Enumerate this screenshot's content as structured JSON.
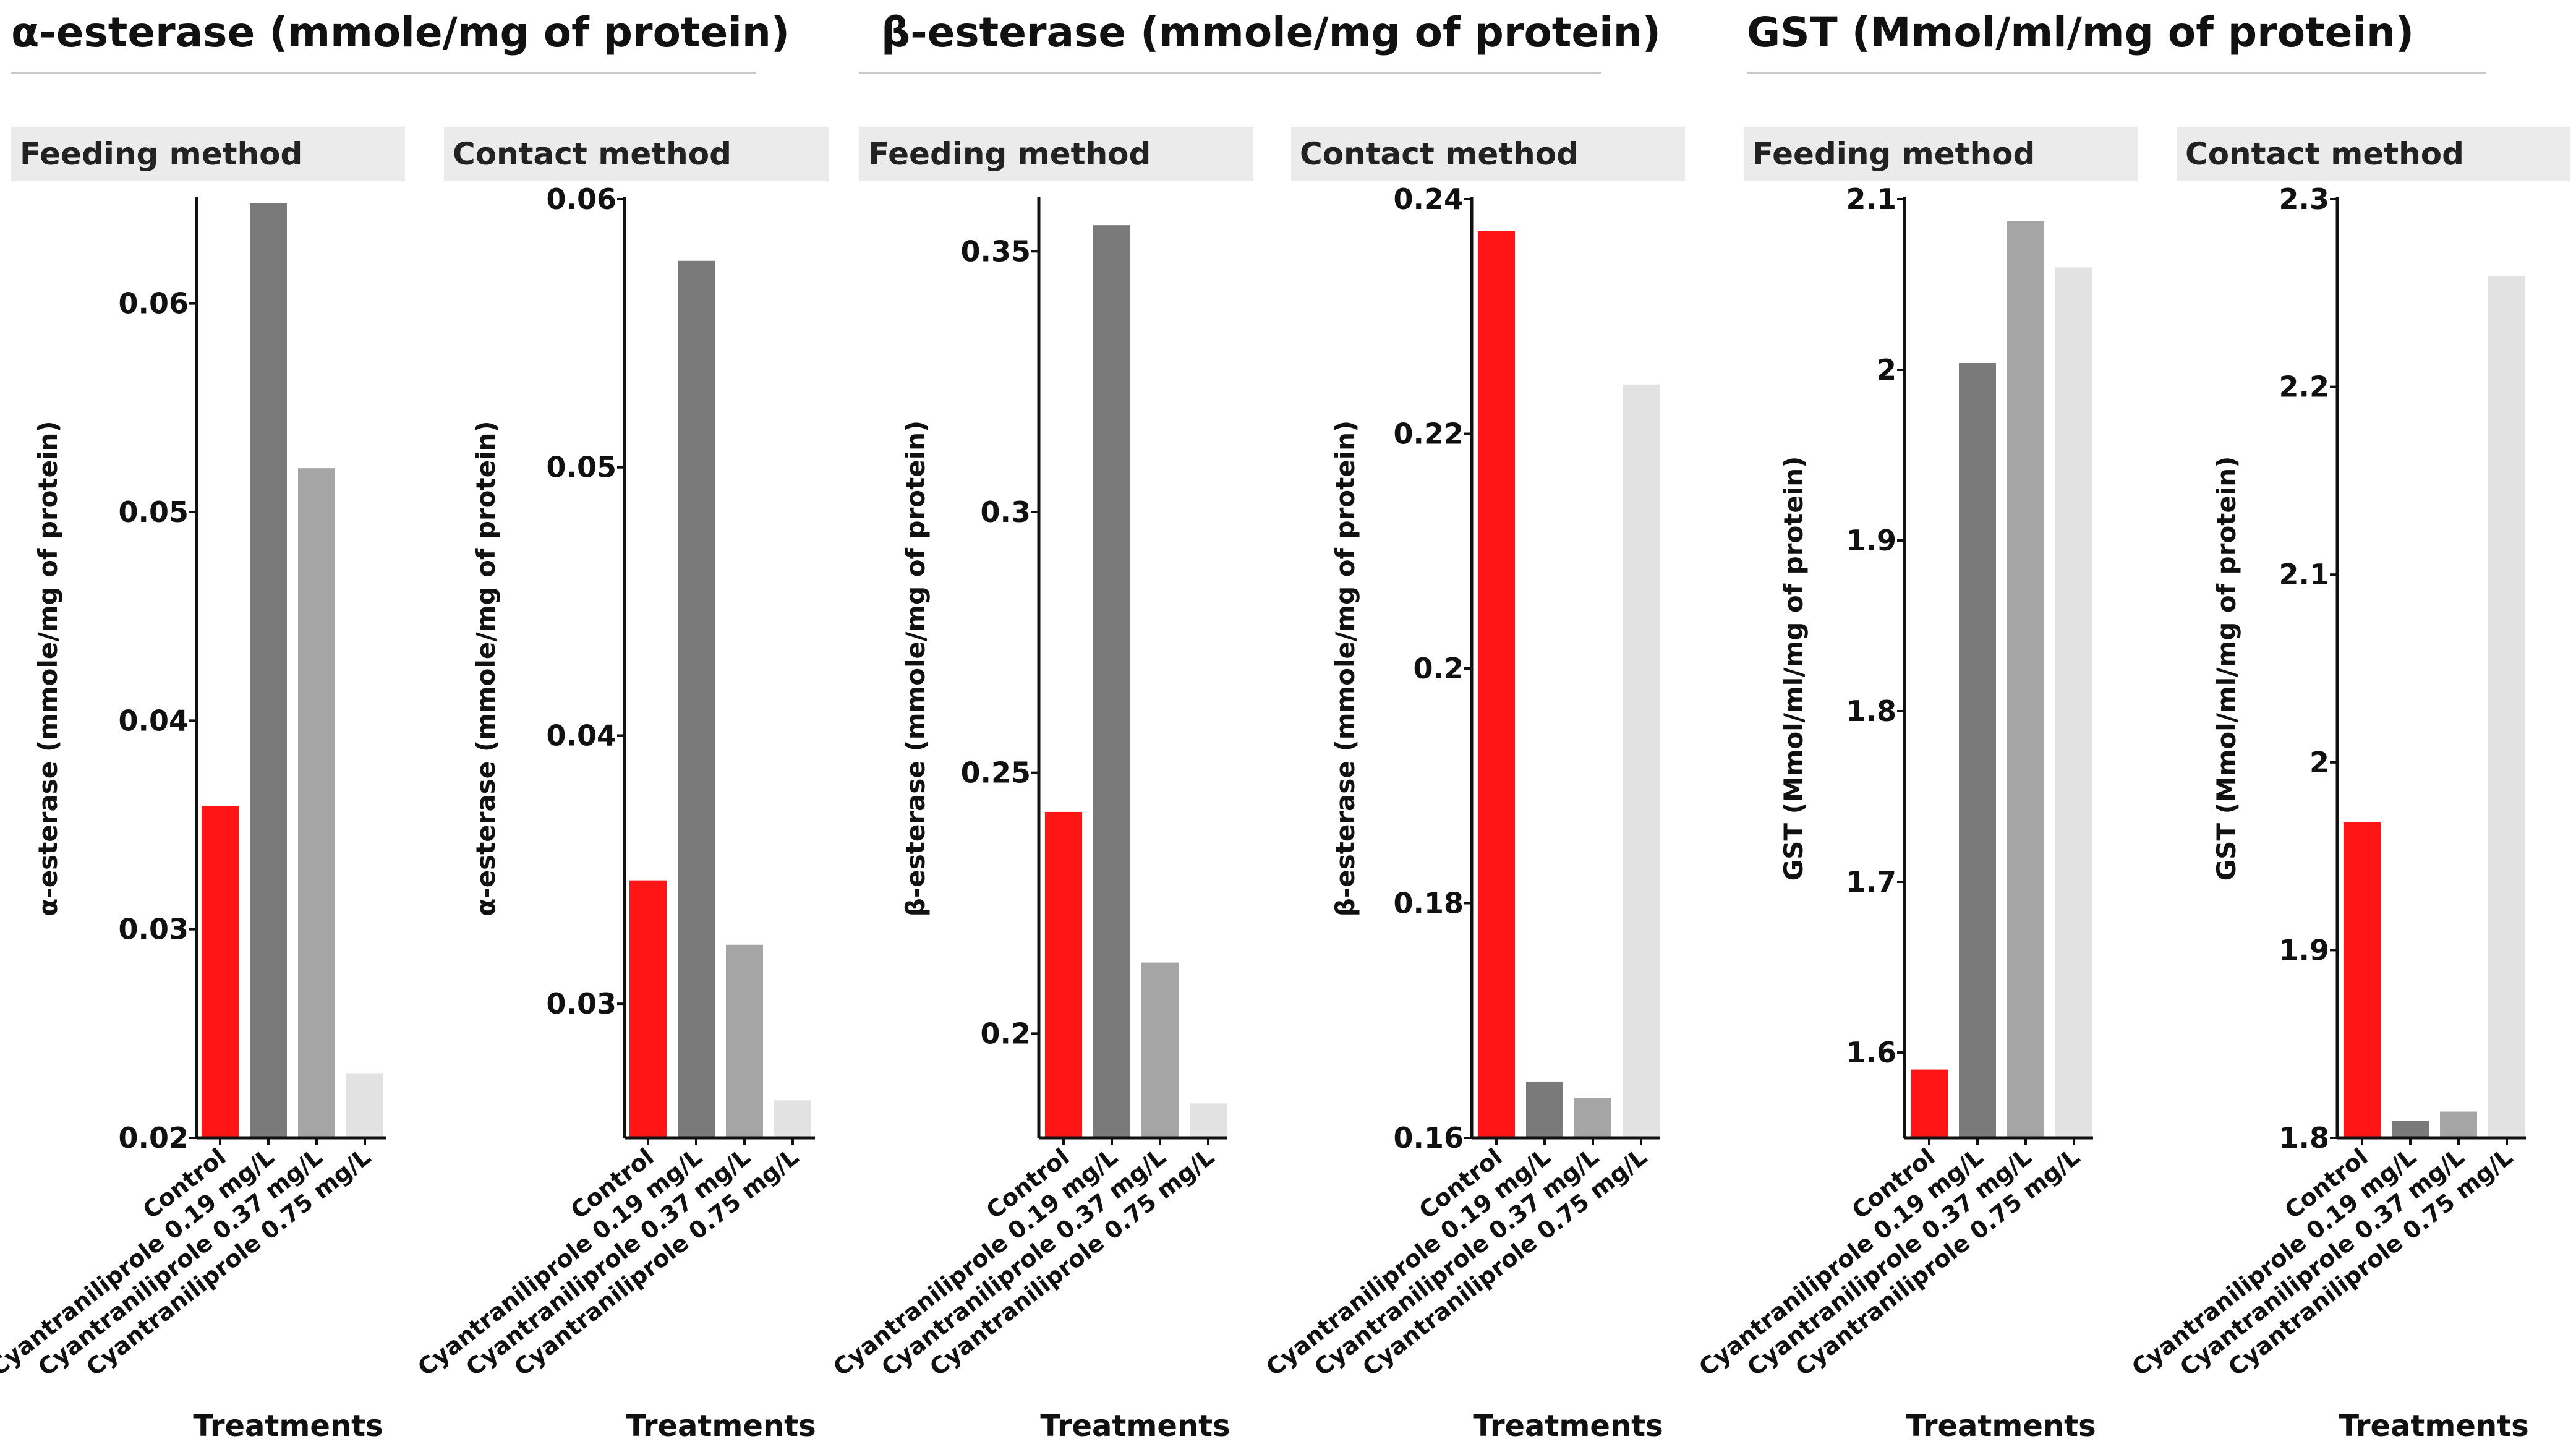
{
  "groups": [
    {
      "title": "α-esterase (mmole/mg of protein)"
    },
    {
      "title": "β-esterase (mmole/mg of protein)"
    },
    {
      "title": "GST (Mmol/ml/mg of protein)"
    }
  ],
  "colors": {
    "Control": "#ff1515",
    "C019": "#7a7a7a",
    "C037": "#a5a5a5",
    "C075": "#e2e2e2"
  },
  "chart_data": [
    {
      "type": "bar",
      "title": "Feeding method",
      "group": "α-esterase (mmole/mg of protein)",
      "categories": [
        "Control",
        "Cyantraniliprole 0.19 mg/L",
        "Cyantraniliprole 0.37 mg/L",
        "Cyantraniliprole 0.75 mg/L"
      ],
      "values": [
        0.0359,
        0.0648,
        0.0521,
        0.0231
      ],
      "xlabel": "Treatments",
      "ylabel": "α-esterase (mmole/mg of protein)",
      "ylim": [
        0.02,
        0.065
      ],
      "ticks": [
        0.02,
        0.03,
        0.04,
        0.05,
        0.06
      ],
      "tick_labels": [
        "0.02",
        "0.03",
        "0.04",
        "0.05",
        "0.06"
      ]
    },
    {
      "type": "bar",
      "title": "Contact method",
      "group": "α-esterase (mmole/mg of protein)",
      "categories": [
        "Control",
        "Cyantraniliprole 0.19 mg/L",
        "Cyantraniliprole 0.37 mg/L",
        "Cyantraniliprole 0.75 mg/L"
      ],
      "values": [
        0.0346,
        0.0577,
        0.0322,
        0.0264
      ],
      "xlabel": "Treatments",
      "ylabel": "α-esterase (mmole/mg of protein)",
      "ylim": [
        0.025,
        0.06
      ],
      "ticks": [
        0.03,
        0.04,
        0.05,
        0.06
      ],
      "tick_labels": [
        "0.03",
        "0.04",
        "0.05",
        "0.06"
      ]
    },
    {
      "type": "bar",
      "title": "Feeding method",
      "group": "β-esterase (mmole/mg of protein)",
      "categories": [
        "Control",
        "Cyantraniliprole 0.19 mg/L",
        "Cyantraniliprole 0.37 mg/L",
        "Cyantraniliprole 0.75 mg/L"
      ],
      "values": [
        0.2425,
        0.355,
        0.2136,
        0.1866
      ],
      "xlabel": "Treatments",
      "ylabel": "β-esterase  (mmole/mg of protein)",
      "ylim": [
        0.18,
        0.36
      ],
      "ticks": [
        0.2,
        0.25,
        0.3,
        0.35
      ],
      "tick_labels": [
        "0.2",
        "0.25",
        "0.3",
        "0.35"
      ]
    },
    {
      "type": "bar",
      "title": "Contact method",
      "group": "β-esterase (mmole/mg of protein)",
      "categories": [
        "Control",
        "Cyantraniliprole 0.19 mg/L",
        "Cyantraniliprole 0.37 mg/L",
        "Cyantraniliprole 0.75 mg/L"
      ],
      "values": [
        0.2373,
        0.1648,
        0.1634,
        0.2242
      ],
      "xlabel": "Treatments",
      "ylabel": "β-esterase  (mmole/mg of protein)",
      "ylim": [
        0.16,
        0.24
      ],
      "ticks": [
        0.16,
        0.18,
        0.2,
        0.22,
        0.24
      ],
      "tick_labels": [
        "0.16",
        "0.18",
        "0.2",
        "0.22",
        "0.24"
      ]
    },
    {
      "type": "bar",
      "title": "Feeding method",
      "group": "GST (Mmol/ml/mg of protein)",
      "categories": [
        "Control",
        "Cyantraniliprole 0.19 mg/L",
        "Cyantraniliprole 0.37 mg/L",
        "Cyantraniliprole 0.75 mg/L"
      ],
      "values": [
        1.59,
        2.004,
        2.087,
        2.06
      ],
      "xlabel": "Treatments",
      "ylabel": "GST (Mmol/ml/mg of protein)",
      "ylim": [
        1.55,
        2.1
      ],
      "ticks": [
        1.6,
        1.7,
        1.8,
        1.9,
        2.0,
        2.1
      ],
      "tick_labels": [
        "1.6",
        "1.7",
        "1.8",
        "1.9",
        "2",
        "2.1"
      ]
    },
    {
      "type": "bar",
      "title": "Contact method",
      "group": "GST (Mmol/ml/mg of protein)",
      "categories": [
        "Control",
        "Cyantraniliprole 0.19 mg/L",
        "Cyantraniliprole 0.37 mg/L",
        "Cyantraniliprole 0.75 mg/L"
      ],
      "values": [
        1.968,
        1.809,
        1.814,
        2.259
      ],
      "xlabel": "Treatments",
      "ylabel": "GST (Mmol/ml/mg of protein)",
      "ylim": [
        1.8,
        2.3
      ],
      "ticks": [
        1.8,
        1.9,
        2.0,
        2.1,
        2.2,
        2.3
      ],
      "tick_labels": [
        "1.8",
        "1.9",
        "2",
        "2.1",
        "2.2",
        "2.3"
      ]
    }
  ]
}
